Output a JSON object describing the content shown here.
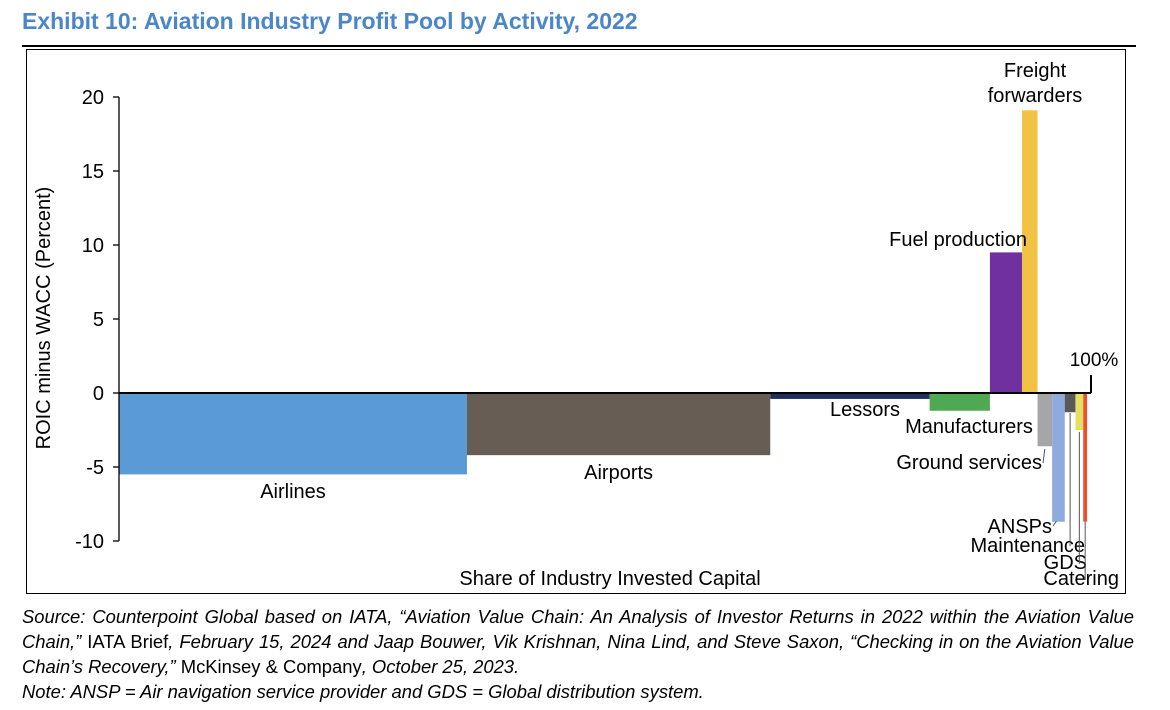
{
  "title": "Exhibit 10: Aviation Industry Profit Pool by Activity, 2022",
  "chart_data": {
    "type": "bar",
    "subtype": "variable-width (marimekko) bar",
    "ylabel": "ROIC minus WACC (Percent)",
    "xlabel": "Share of Industry Invested Capital",
    "ylim": [
      -10,
      20
    ],
    "yticks": [
      -10,
      -5,
      0,
      5,
      10,
      15,
      20
    ],
    "end_label": "100%",
    "grid": false,
    "legend": "none",
    "series": [
      {
        "name": "Airlines",
        "share_pct": 35.8,
        "value": -5.5,
        "color": "#5b9bd5"
      },
      {
        "name": "Airports",
        "share_pct": 31.2,
        "value": -4.2,
        "color": "#675d55"
      },
      {
        "name": "Lessors",
        "share_pct": 16.4,
        "value": -0.4,
        "color": "#1f2f5c"
      },
      {
        "name": "Manufacturers",
        "share_pct": 6.2,
        "value": -1.2,
        "color": "#4ea952"
      },
      {
        "name": "Fuel production",
        "share_pct": 3.3,
        "value": 9.5,
        "color": "#7030a0"
      },
      {
        "name": "Freight forwarders",
        "share_pct": 1.6,
        "value": 19.1,
        "color": "#f2c244"
      },
      {
        "name": "Ground services",
        "share_pct": 1.5,
        "value": -3.6,
        "color": "#a6a6a6"
      },
      {
        "name": "ANSPs",
        "share_pct": 1.3,
        "value": -8.7,
        "color": "#8faadc"
      },
      {
        "name": "Maintenance",
        "share_pct": 1.1,
        "value": -1.3,
        "color": "#595959"
      },
      {
        "name": "GDS",
        "share_pct": 0.8,
        "value": -2.5,
        "color": "#e6e060"
      },
      {
        "name": "Catering",
        "share_pct": 0.4,
        "value": -8.7,
        "color": "#e8502e"
      }
    ]
  },
  "footer": {
    "source_prefix": "Source: Counterpoint Global based on IATA, “Aviation Value Chain: An Analysis of Investor Returns in 2022 within the Aviation Value Chain,”",
    "source_brief": " IATA Brief",
    "source_mid": ", February 15, 2024 and Jaap Bouwer, Vik Krishnan, Nina Lind, and Steve Saxon, “Checking in on the Aviation Value Chain’s Recovery,”",
    "source_pub": " McKinsey & Company",
    "source_end": ", October 25, 2023.",
    "note": "Note: ANSP = Air navigation service provider and GDS = Global distribution system."
  }
}
